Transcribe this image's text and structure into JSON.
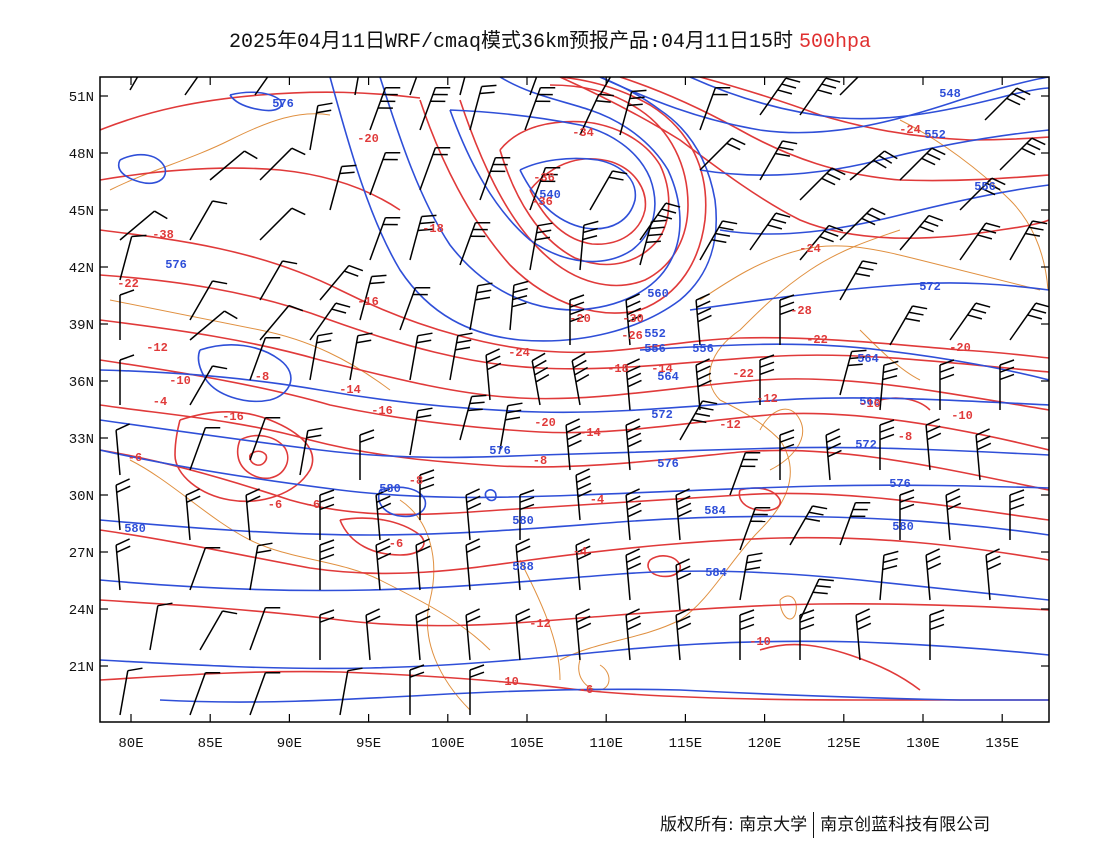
{
  "header": {
    "title": "2025年04月11日WRF/cmaq模式36km预报产品:04月11日15时",
    "level": "500hpa"
  },
  "axes": {
    "lat_labels": [
      "51N",
      "48N",
      "45N",
      "42N",
      "39N",
      "36N",
      "33N",
      "30N",
      "27N",
      "24N",
      "21N"
    ],
    "lon_labels": [
      "80E",
      "85E",
      "90E",
      "95E",
      "100E",
      "105E",
      "110E",
      "115E",
      "120E",
      "125E",
      "130E",
      "135E"
    ]
  },
  "colors": {
    "height": "#2f4fd8",
    "temperature": "#e03a3a",
    "coastline": "#e09040",
    "barbs": "#000000"
  },
  "map": {
    "height_labels": [
      "576",
      "548",
      "552",
      "556",
      "540",
      "576",
      "572",
      "560",
      "552",
      "556",
      "556",
      "564",
      "564",
      "568",
      "572",
      "572",
      "576",
      "576",
      "576",
      "580",
      "580",
      "580",
      "580",
      "584",
      "584",
      "588"
    ],
    "temperature_labels": [
      "-20",
      "-34",
      "-24",
      "-36",
      "-36",
      "-38",
      "-18",
      "-24",
      "-22",
      "-16",
      "-20",
      "-30",
      "-28",
      "-26",
      "-24",
      "-22",
      "-20",
      "-18",
      "-14",
      "-12",
      "-10",
      "-8",
      "-4",
      "-14",
      "-16",
      "-16",
      "-22",
      "-12",
      "-20",
      "-14",
      "-10",
      "-12",
      "-10",
      "-8",
      "-6",
      "-8",
      "-6",
      "-8",
      "-6",
      "-6",
      "-4",
      "-4",
      "-10",
      "-12",
      "-10",
      "-6"
    ]
  },
  "footer": {
    "copyright_label": "版权所有:",
    "org_1": "南京大学",
    "org_2": "南京创蓝科技有限公司"
  }
}
